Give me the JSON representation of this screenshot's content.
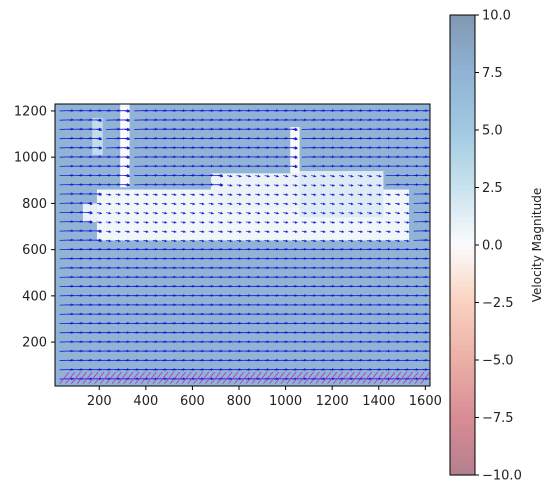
{
  "chart_data": {
    "type": "heatmap",
    "subtype": "velocity field with quiver arrows",
    "title": "",
    "xlabel": "",
    "ylabel": "",
    "xlim": [
      10,
      1620
    ],
    "ylim": [
      10,
      1230
    ],
    "xticks": [
      200,
      400,
      600,
      800,
      1000,
      1200,
      1400,
      1600
    ],
    "yticks": [
      200,
      400,
      600,
      800,
      1000,
      1200
    ],
    "grid": false,
    "background_value": 7.5,
    "regions": [
      {
        "x0": 190,
        "x1": 1530,
        "y0": 640,
        "y1": 860,
        "value": 0.5
      },
      {
        "x0": 1060,
        "x1": 1420,
        "y0": 740,
        "y1": 940,
        "value": 1.5
      },
      {
        "x0": 680,
        "x1": 1060,
        "y0": 780,
        "y1": 930,
        "value": 0.8
      },
      {
        "x0": 290,
        "x1": 330,
        "y0": 870,
        "y1": 1230,
        "value": 0.0
      },
      {
        "x0": 170,
        "x1": 215,
        "y0": 1010,
        "y1": 1170,
        "value": 3.0
      },
      {
        "x0": 1020,
        "x1": 1060,
        "y0": 930,
        "y1": 1130,
        "value": 0.0
      },
      {
        "x0": 130,
        "x1": 190,
        "y0": 720,
        "y1": 800,
        "value": 1.0
      }
    ],
    "quiver": {
      "dominant_direction": "+x (rightward)",
      "arrow_color": "#1a1ad6",
      "row_spacing": 40,
      "col_spacing": 40
    },
    "bottom_streaks_color": "#c020c0",
    "colorbar": {
      "label": "Velocity Magnitude",
      "min": -10.0,
      "max": 10.0,
      "ticks": [
        "10.0",
        "7.5",
        "5.0",
        "2.5",
        "0.0",
        "−2.5",
        "−5.0",
        "−7.5",
        "−10.0"
      ],
      "colormap": "RdBu (alpha 0.5)"
    }
  }
}
